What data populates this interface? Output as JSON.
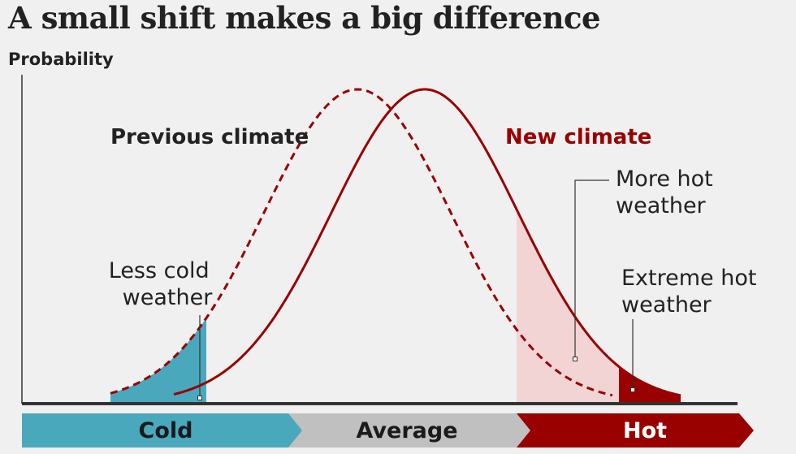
{
  "title": "A small shift makes a big difference",
  "y_axis_label": "Probability",
  "labels": {
    "previous_climate": "Previous climate",
    "new_climate": "New climate",
    "more_hot_weather": [
      "More hot",
      "weather"
    ],
    "extreme_hot_weather": [
      "Extreme hot",
      "weather"
    ],
    "less_cold_weather": [
      "Less cold",
      "weather"
    ]
  },
  "scale": {
    "cold": "Cold",
    "average": "Average",
    "hot": "Hot"
  },
  "colors": {
    "new_climate": "#990000",
    "cold_fill": "#4aa8bd",
    "hot_fill": "#f2d4d4",
    "extreme_fill": "#990000",
    "average_bar": "#c0c0c0",
    "text": "#222222"
  }
}
